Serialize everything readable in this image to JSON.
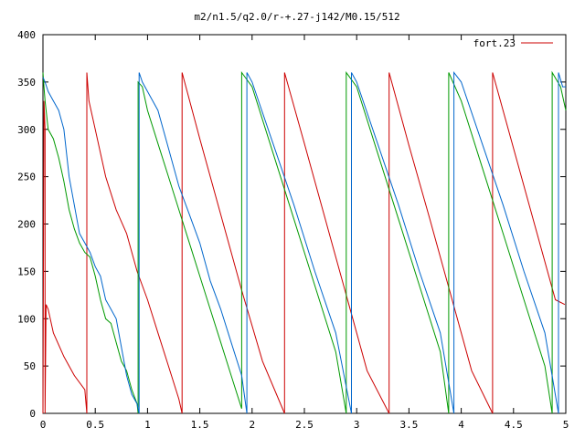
{
  "chart_data": {
    "type": "line",
    "title": "m2/n1.5/q2.0/r-+.27-j142/M0.15/512",
    "xlabel": "",
    "ylabel": "",
    "xlim": [
      0,
      5
    ],
    "ylim": [
      0,
      400
    ],
    "x_ticks": [
      0,
      0.5,
      1,
      1.5,
      2,
      2.5,
      3,
      3.5,
      4,
      4.5,
      5
    ],
    "x_tick_labels": [
      "0",
      "0.5",
      "1",
      "1.5",
      "2",
      "2.5",
      "3",
      "3.5",
      "4",
      "4.5",
      "5"
    ],
    "y_ticks": [
      0,
      50,
      100,
      150,
      200,
      250,
      300,
      350,
      400
    ],
    "y_tick_labels": [
      "0",
      "50",
      "100",
      "150",
      "200",
      "250",
      "300",
      "350",
      "400"
    ],
    "grid": false,
    "legend": {
      "position": "top-right",
      "entries": [
        "fort.23"
      ]
    },
    "series": [
      {
        "name": "fort.23",
        "color": "#cc0000",
        "x": [
          0.0,
          0.01,
          0.02,
          0.02,
          0.03,
          0.05,
          0.1,
          0.2,
          0.3,
          0.4,
          0.42,
          0.42,
          0.44,
          0.5,
          0.6,
          0.7,
          0.8,
          0.9,
          1.0,
          1.1,
          1.2,
          1.3,
          1.33,
          1.33,
          1.5,
          1.7,
          1.9,
          2.1,
          2.31,
          2.31,
          2.5,
          2.7,
          2.9,
          3.1,
          3.31,
          3.31,
          3.5,
          3.7,
          3.9,
          4.1,
          4.3,
          4.3,
          4.5,
          4.7,
          4.9,
          4.99
        ],
        "y": [
          0,
          330,
          300,
          0,
          115,
          110,
          85,
          60,
          40,
          25,
          0,
          360,
          330,
          300,
          250,
          215,
          190,
          150,
          120,
          85,
          50,
          15,
          0,
          360,
          290,
          210,
          130,
          55,
          0,
          360,
          285,
          205,
          125,
          45,
          0,
          360,
          283,
          205,
          125,
          45,
          0,
          360,
          280,
          200,
          120,
          115
        ]
      },
      {
        "color": "#009900",
        "x": [
          0.0,
          0.01,
          0.02,
          0.05,
          0.1,
          0.15,
          0.2,
          0.25,
          0.3,
          0.35,
          0.4,
          0.45,
          0.5,
          0.55,
          0.6,
          0.65,
          0.7,
          0.75,
          0.8,
          0.85,
          0.9,
          0.91,
          0.91,
          0.95,
          1.0,
          1.1,
          1.2,
          1.3,
          1.4,
          1.5,
          1.6,
          1.7,
          1.8,
          1.9,
          1.9,
          2.0,
          2.2,
          2.4,
          2.6,
          2.8,
          2.9,
          2.9,
          3.0,
          3.2,
          3.4,
          3.6,
          3.8,
          3.88,
          3.88,
          4.0,
          4.2,
          4.4,
          4.6,
          4.8,
          4.87,
          4.87,
          4.95,
          5.0
        ],
        "y": [
          360,
          345,
          330,
          300,
          290,
          270,
          245,
          215,
          195,
          180,
          170,
          165,
          145,
          120,
          100,
          95,
          75,
          55,
          45,
          25,
          10,
          0,
          350,
          345,
          320,
          285,
          250,
          215,
          180,
          145,
          110,
          75,
          40,
          5,
          360,
          345,
          275,
          205,
          135,
          65,
          0,
          360,
          345,
          275,
          205,
          135,
          65,
          0,
          360,
          330,
          260,
          190,
          120,
          50,
          0,
          360,
          345,
          320
        ]
      },
      {
        "color": "#0066cc",
        "x": [
          0.0,
          0.02,
          0.05,
          0.1,
          0.15,
          0.2,
          0.25,
          0.3,
          0.35,
          0.4,
          0.45,
          0.5,
          0.55,
          0.6,
          0.65,
          0.7,
          0.75,
          0.8,
          0.85,
          0.9,
          0.92,
          0.92,
          0.95,
          1.0,
          1.05,
          1.1,
          1.2,
          1.3,
          1.4,
          1.5,
          1.6,
          1.7,
          1.8,
          1.9,
          1.95,
          1.95,
          2.0,
          2.2,
          2.4,
          2.6,
          2.8,
          2.95,
          2.95,
          3.0,
          3.2,
          3.4,
          3.6,
          3.8,
          3.93,
          3.93,
          4.0,
          4.2,
          4.4,
          4.6,
          4.8,
          4.93,
          4.93,
          4.97,
          5.0
        ],
        "y": [
          355,
          350,
          340,
          330,
          320,
          300,
          250,
          220,
          190,
          180,
          170,
          155,
          145,
          120,
          110,
          100,
          70,
          40,
          20,
          10,
          0,
          360,
          350,
          340,
          330,
          320,
          280,
          240,
          210,
          180,
          140,
          110,
          75,
          40,
          0,
          360,
          350,
          285,
          220,
          150,
          85,
          0,
          360,
          350,
          285,
          220,
          150,
          85,
          0,
          360,
          350,
          285,
          220,
          150,
          85,
          0,
          360,
          345,
          345
        ]
      }
    ]
  }
}
